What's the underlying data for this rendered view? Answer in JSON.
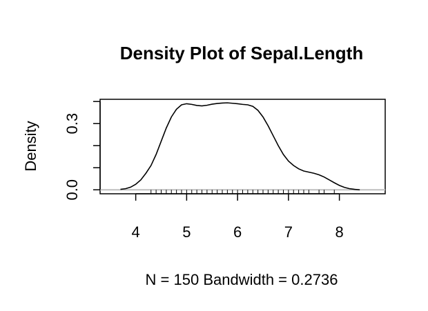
{
  "chart_data": {
    "type": "line",
    "title": "Density Plot of Sepal.Length",
    "xlabel": "N = 150   Bandwidth = 0.2736",
    "ylabel": "Density",
    "xlim": [
      3.3,
      8.9
    ],
    "ylim": [
      -0.018,
      0.41
    ],
    "x_ticks": [
      4,
      5,
      6,
      7,
      8
    ],
    "x_tick_labels": [
      "4",
      "5",
      "6",
      "7",
      "8"
    ],
    "y_ticks": [
      0.0,
      0.1,
      0.2,
      0.3,
      0.4
    ],
    "y_tick_labels": [
      "0.0",
      "",
      "",
      "0.3",
      ""
    ],
    "series": [
      {
        "x": [
          3.7,
          3.8,
          3.9,
          4.0,
          4.1,
          4.2,
          4.3,
          4.4,
          4.5,
          4.6,
          4.7,
          4.8,
          4.9,
          5.0,
          5.1,
          5.2,
          5.3,
          5.4,
          5.5,
          5.6,
          5.7,
          5.8,
          5.9,
          6.0,
          6.1,
          6.2,
          6.3,
          6.4,
          6.5,
          6.6,
          6.7,
          6.8,
          6.9,
          7.0,
          7.1,
          7.2,
          7.3,
          7.4,
          7.5,
          7.6,
          7.7,
          7.8,
          7.9,
          8.0,
          8.1,
          8.2,
          8.3,
          8.4
        ],
        "y": [
          0.002,
          0.005,
          0.012,
          0.025,
          0.045,
          0.075,
          0.11,
          0.16,
          0.22,
          0.28,
          0.33,
          0.365,
          0.385,
          0.39,
          0.387,
          0.382,
          0.38,
          0.383,
          0.388,
          0.391,
          0.393,
          0.394,
          0.392,
          0.39,
          0.387,
          0.385,
          0.378,
          0.36,
          0.33,
          0.29,
          0.245,
          0.2,
          0.16,
          0.13,
          0.11,
          0.095,
          0.085,
          0.08,
          0.075,
          0.068,
          0.058,
          0.045,
          0.032,
          0.02,
          0.011,
          0.005,
          0.002,
          0.0
        ]
      }
    ],
    "rug": [
      4.3,
      4.4,
      4.5,
      4.6,
      4.7,
      4.8,
      4.9,
      5.0,
      5.1,
      5.2,
      5.3,
      5.4,
      5.5,
      5.6,
      5.7,
      5.8,
      5.9,
      6.0,
      6.1,
      6.2,
      6.3,
      6.4,
      6.5,
      6.6,
      6.7,
      6.8,
      6.9,
      7.0,
      7.1,
      7.2,
      7.3,
      7.4,
      7.6,
      7.7,
      7.9
    ],
    "colors": {
      "line": "#000000",
      "baseline": "#bebebe",
      "rug": "#000000"
    }
  }
}
